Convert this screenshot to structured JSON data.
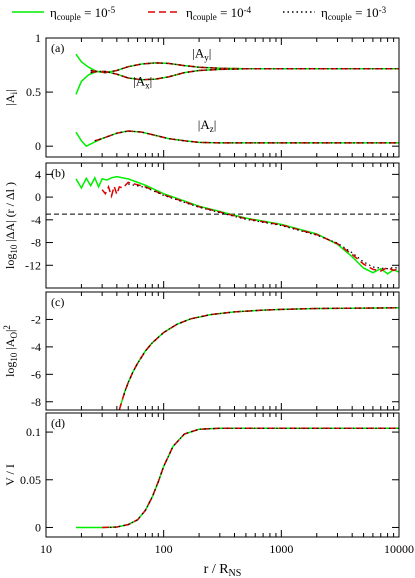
{
  "legend": {
    "placement": "top",
    "entries": [
      {
        "label_main": "η",
        "label_sub": "couple",
        "label_rest": " = 10",
        "label_sup": "-5",
        "color": "#00ee00",
        "dash": "solid"
      },
      {
        "label_main": "η",
        "label_sub": "couple",
        "label_rest": " = 10",
        "label_sup": "-4",
        "color": "#dd0000",
        "dash": "dashed"
      },
      {
        "label_main": "η",
        "label_sub": "couple",
        "label_rest": " = 10",
        "label_sup": "-3",
        "color": "#000000",
        "dash": "dotted"
      }
    ]
  },
  "xaxis": {
    "label_main": "r / R",
    "label_sub": "NS",
    "scale": "log",
    "range": [
      10,
      10000
    ],
    "ticks": [
      {
        "value": 10,
        "label": "10"
      },
      {
        "value": 100,
        "label": "100"
      },
      {
        "value": 1000,
        "label": "1000"
      },
      {
        "value": 10000,
        "label": "10000"
      }
    ]
  },
  "chart_data": [
    {
      "type": "line",
      "panel": "(a)",
      "ylabel": {
        "main": "|A",
        "sub": "i",
        "rest": "|"
      },
      "ylim": [
        -0.1,
        1.0
      ],
      "yticks": [
        {
          "value": 0,
          "label": "0"
        },
        {
          "value": 0.5,
          "label": "0.5"
        },
        {
          "value": 1,
          "label": "1"
        }
      ],
      "annotations": [
        {
          "text_main": "|A",
          "text_sub": "y",
          "text_rest": "|",
          "x": 175,
          "y": 0.82
        },
        {
          "text_main": "|A",
          "text_sub": "x",
          "text_rest": "|",
          "x": 55,
          "y": 0.56
        },
        {
          "text_main": "|A",
          "text_sub": "z",
          "text_rest": "|",
          "x": 195,
          "y": 0.16
        }
      ],
      "series": [
        {
          "key": "Ay_green",
          "color": "#00ee00",
          "x": [
            18,
            20,
            23,
            27,
            32,
            40,
            50,
            65,
            85,
            110,
            150,
            200,
            300,
            500,
            1000,
            3000,
            10000
          ],
          "y": [
            0.85,
            0.78,
            0.73,
            0.69,
            0.68,
            0.7,
            0.735,
            0.76,
            0.77,
            0.765,
            0.745,
            0.73,
            0.72,
            0.715,
            0.715,
            0.715,
            0.715
          ]
        },
        {
          "key": "Ay_red",
          "color": "#dd0000",
          "x": [
            24,
            27,
            32,
            40,
            50,
            65,
            85,
            110,
            150,
            200,
            300,
            500,
            1000,
            3000,
            10000
          ],
          "y": [
            0.7,
            0.69,
            0.68,
            0.7,
            0.735,
            0.76,
            0.77,
            0.765,
            0.745,
            0.73,
            0.72,
            0.715,
            0.715,
            0.715,
            0.715
          ]
        },
        {
          "key": "Ay_black",
          "color": "#000000",
          "x": [
            24,
            27,
            32,
            40,
            50,
            65,
            85,
            110,
            150,
            200,
            300,
            500,
            1000,
            3000,
            10000
          ],
          "y": [
            0.7,
            0.69,
            0.68,
            0.7,
            0.735,
            0.76,
            0.77,
            0.765,
            0.745,
            0.73,
            0.72,
            0.715,
            0.715,
            0.715,
            0.715
          ]
        },
        {
          "key": "Ax_green",
          "color": "#00ee00",
          "x": [
            18,
            20,
            23,
            27,
            32,
            40,
            50,
            65,
            85,
            110,
            150,
            200,
            300,
            500,
            1000,
            3000,
            10000
          ],
          "y": [
            0.48,
            0.6,
            0.66,
            0.69,
            0.69,
            0.665,
            0.63,
            0.615,
            0.62,
            0.64,
            0.68,
            0.7,
            0.71,
            0.715,
            0.715,
            0.715,
            0.715
          ]
        },
        {
          "key": "Ax_red",
          "color": "#dd0000",
          "x": [
            24,
            27,
            32,
            40,
            50,
            65,
            85,
            110,
            150,
            200,
            300,
            500,
            1000,
            3000,
            10000
          ],
          "y": [
            0.68,
            0.69,
            0.69,
            0.665,
            0.63,
            0.615,
            0.62,
            0.64,
            0.68,
            0.7,
            0.71,
            0.715,
            0.715,
            0.715,
            0.715
          ]
        },
        {
          "key": "Ax_black",
          "color": "#000000",
          "x": [
            24,
            27,
            32,
            40,
            50,
            65,
            85,
            110,
            150,
            200,
            300,
            500,
            1000,
            3000,
            10000
          ],
          "y": [
            0.68,
            0.69,
            0.69,
            0.665,
            0.63,
            0.615,
            0.62,
            0.64,
            0.68,
            0.7,
            0.71,
            0.715,
            0.715,
            0.715,
            0.715
          ]
        },
        {
          "key": "Az_green",
          "color": "#00ee00",
          "x": [
            18,
            20,
            22,
            25,
            30,
            40,
            50,
            65,
            85,
            110,
            150,
            200,
            300,
            500,
            1000,
            3000,
            10000
          ],
          "y": [
            0.13,
            0.05,
            0.0,
            0.03,
            0.07,
            0.12,
            0.14,
            0.13,
            0.1,
            0.07,
            0.05,
            0.035,
            0.03,
            0.03,
            0.03,
            0.03,
            0.03
          ]
        },
        {
          "key": "Az_red",
          "color": "#dd0000",
          "x": [
            26,
            30,
            40,
            50,
            65,
            85,
            110,
            150,
            200,
            300,
            500,
            1000,
            3000,
            10000
          ],
          "y": [
            0.05,
            0.07,
            0.12,
            0.14,
            0.13,
            0.1,
            0.07,
            0.05,
            0.035,
            0.03,
            0.03,
            0.03,
            0.03,
            0.03
          ]
        },
        {
          "key": "Az_black",
          "color": "#000000",
          "x": [
            26,
            30,
            40,
            50,
            65,
            85,
            110,
            150,
            200,
            300,
            500,
            1000,
            3000,
            10000
          ],
          "y": [
            0.05,
            0.07,
            0.12,
            0.14,
            0.13,
            0.1,
            0.07,
            0.05,
            0.035,
            0.03,
            0.03,
            0.03,
            0.03,
            0.03
          ]
        }
      ]
    },
    {
      "type": "line",
      "panel": "(b)",
      "ylabel": {
        "main": "log",
        "sub": "10",
        "rest": " |ΔA| (r / Δl )"
      },
      "ylim": [
        -16,
        6
      ],
      "yticks": [
        {
          "value": 4,
          "label": "4"
        },
        {
          "value": 0,
          "label": "0"
        },
        {
          "value": -4,
          "label": "-4"
        },
        {
          "value": -8,
          "label": "-8"
        },
        {
          "value": -12,
          "label": "-12"
        }
      ],
      "reference_line": {
        "y": -3,
        "style": "dashed",
        "color": "#000000"
      },
      "series": [
        {
          "key": "green",
          "color": "#00ee00",
          "x": [
            18,
            20,
            22,
            24,
            26,
            28,
            30,
            33,
            36,
            40,
            50,
            70,
            100,
            200,
            500,
            1000,
            2000,
            3000,
            4000,
            5000,
            6000,
            7000,
            8000,
            9000,
            10000
          ],
          "y": [
            3.2,
            1.6,
            3.3,
            2.0,
            3.4,
            1.8,
            3.2,
            3.0,
            3.4,
            3.6,
            3.2,
            2.1,
            0.6,
            -1.6,
            -3.7,
            -4.8,
            -6.5,
            -8.3,
            -10.5,
            -12.5,
            -13.3,
            -12.6,
            -13.5,
            -12.8,
            -13.2
          ]
        },
        {
          "key": "red",
          "color": "#dd0000",
          "x": [
            30,
            32,
            34,
            36,
            38,
            40,
            42,
            45,
            50,
            70,
            100,
            200,
            500,
            1000,
            2000,
            3000,
            4000,
            5000,
            6000,
            7000,
            8000,
            9000,
            10000
          ],
          "y": [
            1.3,
            0.6,
            1.8,
            0.2,
            1.9,
            0.5,
            1.8,
            1.6,
            2.6,
            1.8,
            0.4,
            -1.7,
            -3.8,
            -4.9,
            -6.6,
            -8.2,
            -10.1,
            -11.8,
            -12.7,
            -13.0,
            -12.4,
            -12.9,
            -12.6
          ]
        },
        {
          "key": "black",
          "color": "#000000",
          "x": [
            50,
            70,
            100,
            200,
            500,
            1000,
            2000,
            3000,
            4000,
            5000,
            6000,
            7000,
            8000,
            9000,
            10000
          ],
          "y": [
            2.3,
            1.7,
            0.3,
            -1.8,
            -3.9,
            -5.0,
            -6.7,
            -8.1,
            -9.8,
            -11.4,
            -12.3,
            -12.5,
            -12.6,
            -12.4,
            -12.5
          ]
        }
      ]
    },
    {
      "type": "line",
      "panel": "(c)",
      "ylabel": {
        "main": "log",
        "sub": "10",
        "rest": " |A",
        "sub2": "O",
        "rest2": "|",
        "sup": "2"
      },
      "ylim": [
        -8.6,
        0
      ],
      "yticks": [
        {
          "value": -2,
          "label": "-2"
        },
        {
          "value": -4,
          "label": "-4"
        },
        {
          "value": -6,
          "label": "-6"
        },
        {
          "value": -8,
          "label": "-8"
        }
      ],
      "series": [
        {
          "key": "green",
          "color": "#00ee00",
          "x": [
            42,
            44,
            47,
            50,
            55,
            60,
            70,
            80,
            100,
            130,
            170,
            250,
            400,
            700,
            1000,
            2000,
            5000,
            10000
          ],
          "y": [
            -8.6,
            -8.0,
            -7.2,
            -6.6,
            -5.8,
            -5.2,
            -4.3,
            -3.7,
            -2.95,
            -2.35,
            -1.95,
            -1.65,
            -1.45,
            -1.32,
            -1.27,
            -1.2,
            -1.17,
            -1.15
          ]
        },
        {
          "key": "red",
          "color": "#dd0000",
          "x": [
            42,
            44,
            47,
            50,
            55,
            60,
            70,
            80,
            100,
            130,
            170,
            250,
            400,
            700,
            1000,
            2000,
            5000,
            10000
          ],
          "y": [
            -8.6,
            -8.0,
            -7.2,
            -6.6,
            -5.8,
            -5.2,
            -4.3,
            -3.7,
            -2.95,
            -2.35,
            -1.95,
            -1.65,
            -1.45,
            -1.32,
            -1.27,
            -1.2,
            -1.17,
            -1.15
          ]
        },
        {
          "key": "black",
          "color": "#000000",
          "x": [
            46,
            47,
            50,
            55,
            60,
            70,
            80,
            100,
            130,
            170,
            250,
            400,
            700,
            1000,
            2000,
            5000,
            10000
          ],
          "y": [
            -7.5,
            -7.2,
            -6.6,
            -5.8,
            -5.2,
            -4.3,
            -3.7,
            -2.95,
            -2.35,
            -1.95,
            -1.65,
            -1.45,
            -1.32,
            -1.27,
            -1.2,
            -1.17,
            -1.15
          ]
        }
      ]
    },
    {
      "type": "line",
      "panel": "(d)",
      "ylabel": {
        "main": "V / I"
      },
      "ylim": [
        -0.01,
        0.12
      ],
      "yticks": [
        {
          "value": 0,
          "label": "0"
        },
        {
          "value": 0.05,
          "label": "0.05"
        },
        {
          "value": 0.1,
          "label": "0.1"
        }
      ],
      "series": [
        {
          "key": "green",
          "color": "#00ee00",
          "x": [
            18,
            30,
            40,
            50,
            60,
            70,
            80,
            90,
            100,
            120,
            150,
            200,
            300,
            500,
            1000,
            10000
          ],
          "y": [
            0,
            0,
            0.0005,
            0.003,
            0.008,
            0.018,
            0.032,
            0.048,
            0.064,
            0.085,
            0.098,
            0.103,
            0.104,
            0.104,
            0.104,
            0.104
          ]
        },
        {
          "key": "red",
          "color": "#dd0000",
          "x": [
            30,
            40,
            50,
            60,
            70,
            80,
            90,
            100,
            120,
            150,
            200,
            300,
            500,
            1000,
            10000
          ],
          "y": [
            0,
            0.0005,
            0.003,
            0.008,
            0.018,
            0.032,
            0.048,
            0.064,
            0.085,
            0.098,
            0.103,
            0.104,
            0.104,
            0.104,
            0.104
          ]
        },
        {
          "key": "black",
          "color": "#000000",
          "x": [
            35,
            40,
            50,
            60,
            70,
            80,
            90,
            100,
            120,
            150,
            200,
            300,
            500,
            1000,
            10000
          ],
          "y": [
            0,
            0.0005,
            0.003,
            0.008,
            0.018,
            0.032,
            0.048,
            0.064,
            0.085,
            0.098,
            0.103,
            0.104,
            0.104,
            0.104,
            0.104
          ]
        }
      ]
    }
  ]
}
